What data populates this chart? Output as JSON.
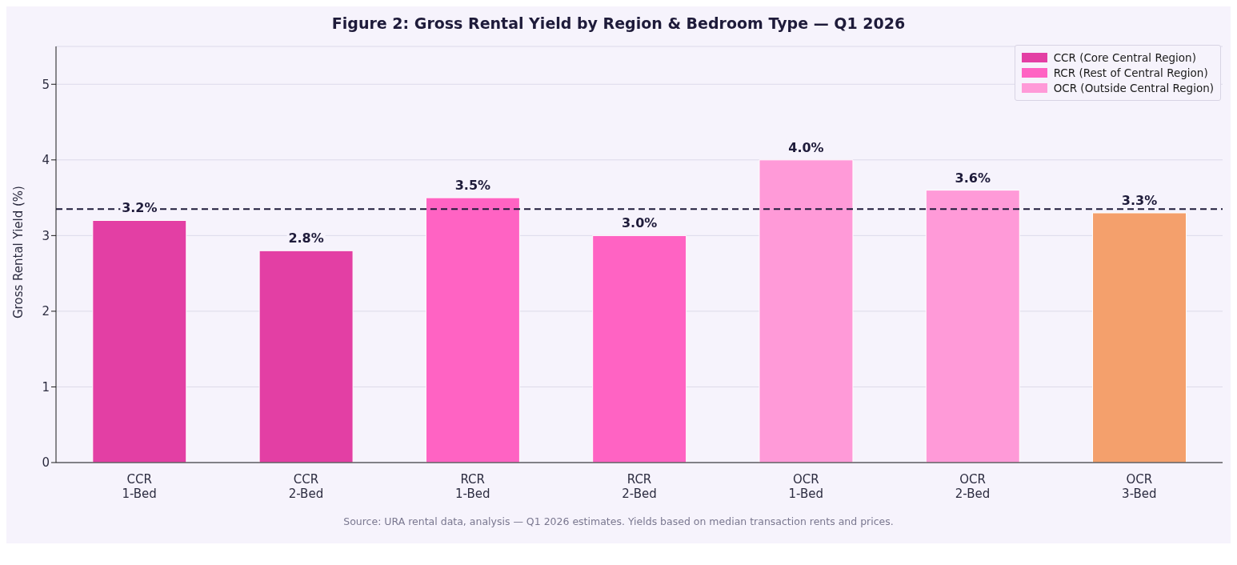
{
  "chart_data": {
    "type": "bar",
    "title": "Figure 2: Gross Rental Yield by Region & Bedroom Type — Q1 2026",
    "ylabel": "Gross Rental Yield (%)",
    "categories": [
      "CCR\n1-Bed",
      "CCR\n2-Bed",
      "RCR\n1-Bed",
      "RCR\n2-Bed",
      "OCR\n1-Bed",
      "OCR\n2-Bed",
      "OCR\n3-Bed"
    ],
    "stacked": true,
    "series": [
      {
        "name": "CCR (Core Central Region)",
        "color": "#e33fa4",
        "values": [
          3.2,
          2.8,
          null,
          null,
          null,
          null,
          null
        ],
        "value_labels": [
          "3.2%",
          "2.8%",
          null,
          null,
          null,
          null,
          null
        ]
      },
      {
        "name": "RCR (Rest of Central Region)",
        "color": "#ff63c3",
        "values": [
          null,
          null,
          3.5,
          3.0,
          null,
          null,
          null
        ],
        "value_labels": [
          null,
          null,
          "3.5%",
          "3.0%",
          null,
          null,
          null
        ]
      },
      {
        "name": "OCR (Outside Central Region)",
        "color": "#ff9ad8",
        "values": [
          null,
          null,
          null,
          null,
          4.0,
          3.6,
          null
        ],
        "value_labels": [
          null,
          null,
          null,
          null,
          "4.0%",
          "3.6%",
          null
        ]
      },
      {
        "color": "#f4a06c",
        "values": [
          null,
          null,
          null,
          null,
          null,
          null,
          3.3
        ],
        "value_labels": [
          null,
          null,
          null,
          null,
          null,
          null,
          "3.3%"
        ]
      }
    ],
    "ylim": [
      0,
      5.5
    ],
    "yticks": [
      0,
      1,
      2,
      3,
      4,
      5
    ],
    "grid": "y",
    "legend": "top right",
    "ref_lines": [
      {
        "axis": "y",
        "value": 3.35,
        "color": "#1e1b3a",
        "line_style": "dashed"
      }
    ],
    "annotations": [
      "Source: URA rental data, analysis — Q1 2026 estimates. Yields based on median transaction rents and prices."
    ]
  }
}
